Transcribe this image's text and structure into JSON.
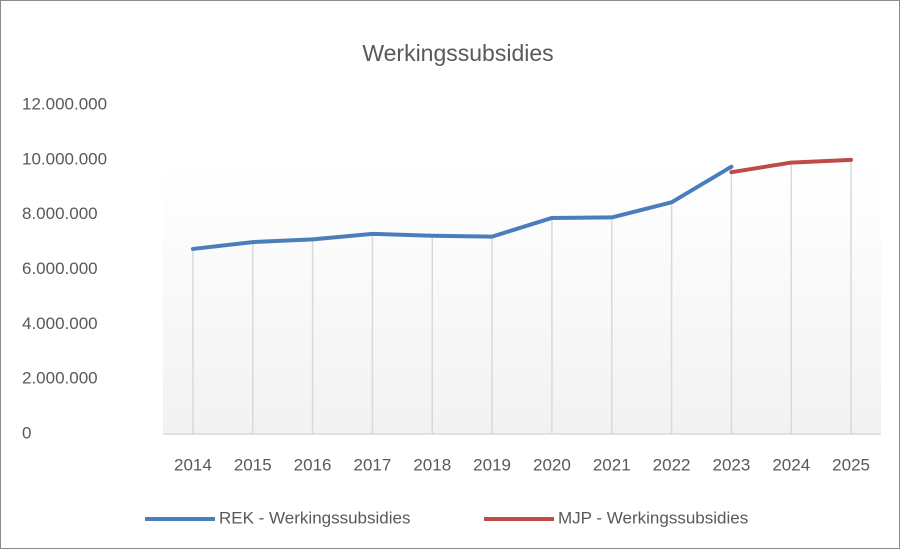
{
  "chart_data": {
    "type": "line",
    "title": "Werkingssubsidies",
    "categories": [
      "2014",
      "2015",
      "2016",
      "2017",
      "2018",
      "2019",
      "2020",
      "2021",
      "2022",
      "2023",
      "2024",
      "2025"
    ],
    "series": [
      {
        "name": "REK - Werkingssubsidies",
        "color": "#4a7ebb",
        "values": [
          6750000,
          7000000,
          7100000,
          7300000,
          7230000,
          7200000,
          7880000,
          7900000,
          8450000,
          9750000,
          null,
          null
        ]
      },
      {
        "name": "MJP - Werkingssubsidies",
        "color": "#be4b48",
        "values": [
          null,
          null,
          null,
          null,
          null,
          null,
          null,
          null,
          null,
          9550000,
          9900000,
          10000000
        ]
      }
    ],
    "ylim": [
      0,
      12000000
    ],
    "yticks": [
      0,
      {
        "value": 2000000,
        "label": "2.000.000"
      },
      {
        "value": 4000000,
        "label": "4.000.000"
      },
      {
        "value": 6000000,
        "label": "6.000.000"
      },
      {
        "value": 8000000,
        "label": "8.000.000"
      },
      {
        "value": 10000000,
        "label": "10.000.000"
      },
      {
        "value": 12000000,
        "label": "12.000.000"
      }
    ],
    "legend": "bottom"
  }
}
